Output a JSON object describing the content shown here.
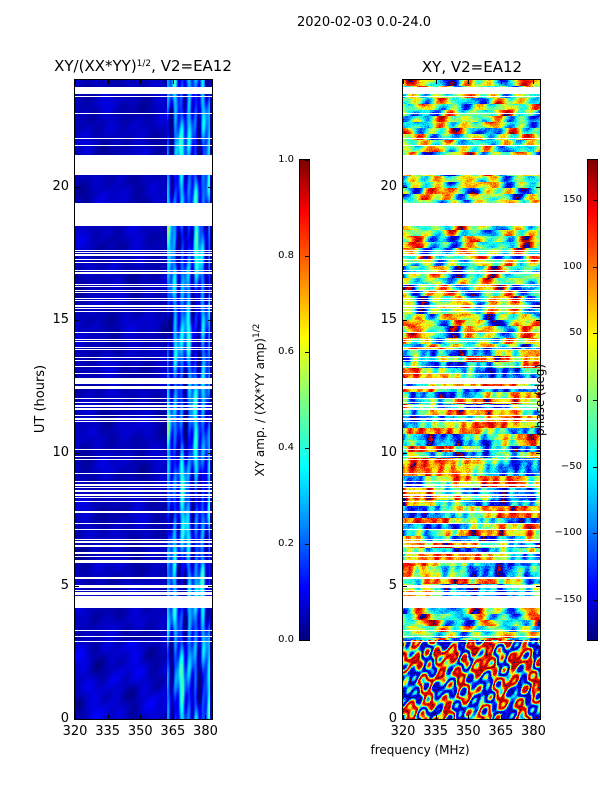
{
  "suptitle": "2020-02-03 0.0-24.0",
  "chart_data": [
    {
      "type": "heatmap",
      "title_main": "XY/(XX*YY)",
      "title_sup": "1/2",
      "title_rest": ", V2=EA12",
      "xlabel": "frequency (MHz)",
      "ylabel": "UT (hours)",
      "xlim": [
        320,
        383
      ],
      "ylim": [
        0,
        24
      ],
      "xticks": [
        320,
        335,
        350,
        365,
        380
      ],
      "yticks": [
        0,
        5,
        10,
        15,
        20
      ],
      "colorbar": {
        "label_main": "XY amp. / (XX*YY amp)",
        "label_sup": "1/2",
        "range": [
          0,
          1
        ],
        "ticks": [
          "0.0",
          "0.2",
          "0.4",
          "0.6",
          "0.8",
          "1.0"
        ],
        "tick_values": [
          0,
          0.2,
          0.4,
          0.6,
          0.8,
          1.0
        ],
        "colormap": "jet"
      },
      "flagged_ut_ranges": [
        [
          23.5,
          23.75
        ],
        [
          20.45,
          21.2
        ],
        [
          18.55,
          19.4
        ],
        [
          4.2,
          4.65
        ]
      ]
    },
    {
      "type": "heatmap",
      "title": "XY, V2=EA12",
      "xlim": [
        320,
        383
      ],
      "ylim": [
        0,
        24
      ],
      "xticks": [
        320,
        335,
        350,
        365,
        380
      ],
      "yticks": [
        0,
        5,
        10,
        15,
        20
      ],
      "colorbar": {
        "label": "phase (deg)",
        "range": [
          -180,
          180
        ],
        "ticks": [
          "−150",
          "−100",
          "−50",
          "0",
          "50",
          "100",
          "150"
        ],
        "tick_values": [
          -150,
          -100,
          -50,
          0,
          50,
          100,
          150
        ],
        "colormap": "jet"
      },
      "flagged_ut_ranges": [
        [
          23.5,
          23.75
        ],
        [
          20.45,
          21.2
        ],
        [
          18.55,
          19.4
        ],
        [
          4.2,
          4.65
        ]
      ]
    }
  ]
}
